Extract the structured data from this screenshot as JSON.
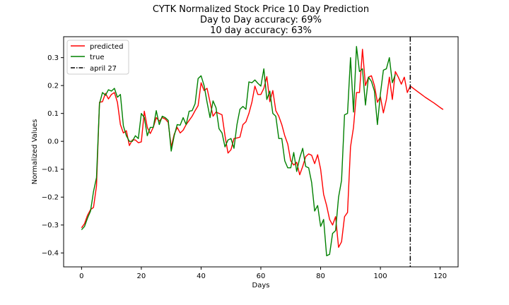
{
  "titles": {
    "line1": "CYTK Normalized Stock Price 10 Day Prediction",
    "line2": "Day to Day accuracy: 69%",
    "line3": "10 day accuracy: 63%"
  },
  "chart_data": {
    "type": "line",
    "title": "CYTK Normalized Stock Price 10 Day Prediction",
    "xlabel": "Days",
    "ylabel": "Normalized Values",
    "xlim": [
      -6,
      126
    ],
    "ylim": [
      -0.45,
      0.375
    ],
    "xticks": [
      0,
      20,
      40,
      60,
      80,
      100,
      120
    ],
    "yticks": [
      -0.4,
      -0.3,
      -0.2,
      -0.1,
      0.0,
      0.1,
      0.2,
      0.3
    ],
    "ytick_labels": [
      "−0.4",
      "−0.3",
      "−0.2",
      "−0.1",
      "0.0",
      "0.1",
      "0.2",
      "0.3"
    ],
    "legend_position": "upper-left",
    "grid": false,
    "series": [
      {
        "name": "predicted",
        "color": "#ff0000",
        "style": "solid",
        "x_start": 0,
        "values": [
          -0.31,
          -0.295,
          -0.265,
          -0.245,
          -0.237,
          -0.16,
          0.14,
          0.142,
          0.172,
          0.152,
          0.168,
          0.175,
          0.14,
          0.06,
          0.03,
          0.038,
          -0.015,
          0.005,
          0.005,
          -0.005,
          -0.002,
          0.108,
          0.05,
          0.028,
          0.05,
          0.085,
          0.072,
          0.085,
          0.08,
          0.068,
          -0.02,
          0.025,
          0.05,
          0.03,
          0.04,
          0.06,
          0.075,
          0.09,
          0.11,
          0.128,
          0.21,
          0.182,
          0.19,
          0.14,
          0.09,
          0.105,
          0.1,
          0.095,
          0.02,
          -0.042,
          -0.03,
          0.01,
          0.012,
          0.015,
          0.06,
          0.07,
          0.1,
          0.14,
          0.198,
          0.168,
          0.168,
          0.19,
          0.232,
          0.142,
          0.182,
          0.11,
          0.09,
          0.06,
          0.02,
          -0.01,
          -0.07,
          -0.085,
          -0.075,
          -0.12,
          -0.09,
          -0.055,
          -0.045,
          -0.05,
          -0.08,
          -0.048,
          -0.1,
          -0.19,
          -0.23,
          -0.28,
          -0.3,
          -0.27,
          -0.38,
          -0.36,
          -0.27,
          -0.255,
          -0.02,
          0.05,
          0.175,
          0.175,
          0.33,
          0.2,
          0.23,
          0.235,
          0.2,
          0.14,
          0.16,
          0.102,
          0.15,
          0.23,
          0.15,
          0.25,
          0.23,
          0.205,
          0.23,
          0.175,
          0.198,
          0.19,
          0.182,
          0.174,
          0.166,
          0.158,
          0.151,
          0.144,
          0.137,
          0.129,
          0.121,
          0.114
        ]
      },
      {
        "name": "true",
        "color": "#008000",
        "style": "solid",
        "x_start": 0,
        "values": [
          -0.317,
          -0.305,
          -0.275,
          -0.25,
          -0.18,
          -0.13,
          0.135,
          0.175,
          0.165,
          0.185,
          0.18,
          0.19,
          0.158,
          0.168,
          0.055,
          0.02,
          0.0,
          0.0,
          0.02,
          0.01,
          0.1,
          0.085,
          0.02,
          0.05,
          0.05,
          0.11,
          0.06,
          0.09,
          0.085,
          0.075,
          -0.035,
          0.02,
          0.06,
          0.058,
          0.085,
          0.06,
          0.108,
          0.11,
          0.135,
          0.225,
          0.235,
          0.2,
          0.14,
          0.085,
          0.145,
          0.12,
          0.045,
          0.03,
          -0.02,
          0.005,
          0.01,
          -0.025,
          0.06,
          0.115,
          0.125,
          0.115,
          0.213,
          0.21,
          0.22,
          0.208,
          0.198,
          0.26,
          0.15,
          0.18,
          0.1,
          0.09,
          0.01,
          0.01,
          -0.07,
          -0.095,
          -0.095,
          -0.04,
          -0.108,
          -0.06,
          -0.025,
          -0.09,
          -0.095,
          -0.148,
          -0.25,
          -0.23,
          -0.305,
          -0.28,
          -0.41,
          -0.405,
          -0.33,
          -0.32,
          -0.2,
          -0.14,
          0.095,
          0.1,
          0.3,
          0.105,
          0.34,
          0.25,
          0.26,
          0.13,
          0.23,
          0.215,
          0.18,
          0.06,
          0.17,
          0.255,
          0.26,
          0.3,
          0.21,
          0.24
        ]
      }
    ],
    "reference_line": {
      "label": "april 27",
      "x": 110,
      "color": "#000000",
      "style": "dash-dot"
    }
  }
}
